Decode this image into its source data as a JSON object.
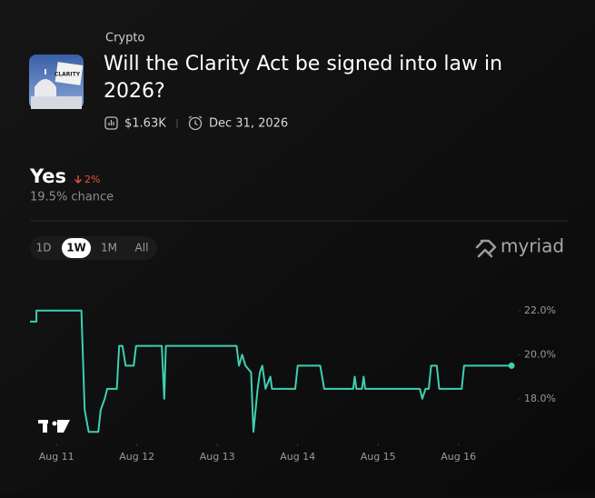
{
  "header": {
    "category": "Crypto",
    "title": "Will the Clarity Act be signed into law in 2026?",
    "volume": "$1.63K",
    "end_date": "Dec 31, 2026"
  },
  "outcome": {
    "name": "Yes",
    "change": "2%",
    "chance": "19.5% chance"
  },
  "tabs": [
    "1D",
    "1W",
    "1M",
    "All"
  ],
  "selected_tab": "1W",
  "brand": "myriad",
  "chart_data": {
    "type": "line",
    "color": "#3ecfb2",
    "x": [
      10.67,
      10.75,
      10.75,
      11.31,
      11.35,
      11.4,
      11.52,
      11.55,
      11.6,
      11.63,
      11.75,
      11.78,
      11.82,
      11.86,
      11.96,
      11.99,
      12.31,
      12.34,
      12.36,
      13.24,
      13.27,
      13.31,
      13.35,
      13.42,
      13.45,
      13.5,
      13.53,
      13.56,
      13.6,
      13.66,
      13.68,
      13.97,
      14.0,
      14.28,
      14.33,
      14.69,
      14.71,
      14.73,
      14.8,
      14.82,
      14.84,
      15.52,
      15.55,
      15.59,
      15.63,
      15.66,
      15.73,
      15.76,
      16.04,
      16.07,
      16.66
    ],
    "values": [
      21.5,
      21.5,
      22.0,
      22.0,
      17.5,
      16.5,
      16.5,
      17.5,
      18.0,
      18.45,
      18.45,
      20.4,
      20.4,
      19.5,
      19.5,
      20.4,
      20.4,
      18.0,
      20.4,
      20.4,
      19.5,
      20.0,
      19.5,
      19.2,
      16.5,
      18.4,
      19.2,
      19.5,
      18.45,
      19.0,
      18.45,
      18.45,
      19.5,
      19.5,
      18.45,
      18.45,
      19.0,
      18.45,
      18.45,
      19.0,
      18.45,
      18.45,
      18.0,
      18.45,
      18.45,
      19.5,
      19.5,
      18.45,
      18.45,
      19.5,
      19.5
    ],
    "xlim": [
      10.67,
      16.67
    ],
    "xticks": [
      {
        "value": 11,
        "label": "Aug 11"
      },
      {
        "value": 12,
        "label": "Aug 12"
      },
      {
        "value": 13,
        "label": "Aug 13"
      },
      {
        "value": 14,
        "label": "Aug 14"
      },
      {
        "value": 15,
        "label": "Aug 15"
      },
      {
        "value": 16,
        "label": "Aug 16"
      }
    ],
    "ylim": [
      16.3,
      22.9
    ],
    "yticks": [
      {
        "value": 18,
        "label": "18.0%"
      },
      {
        "value": 20,
        "label": "20.0%"
      },
      {
        "value": 22,
        "label": "22.0%"
      }
    ]
  }
}
